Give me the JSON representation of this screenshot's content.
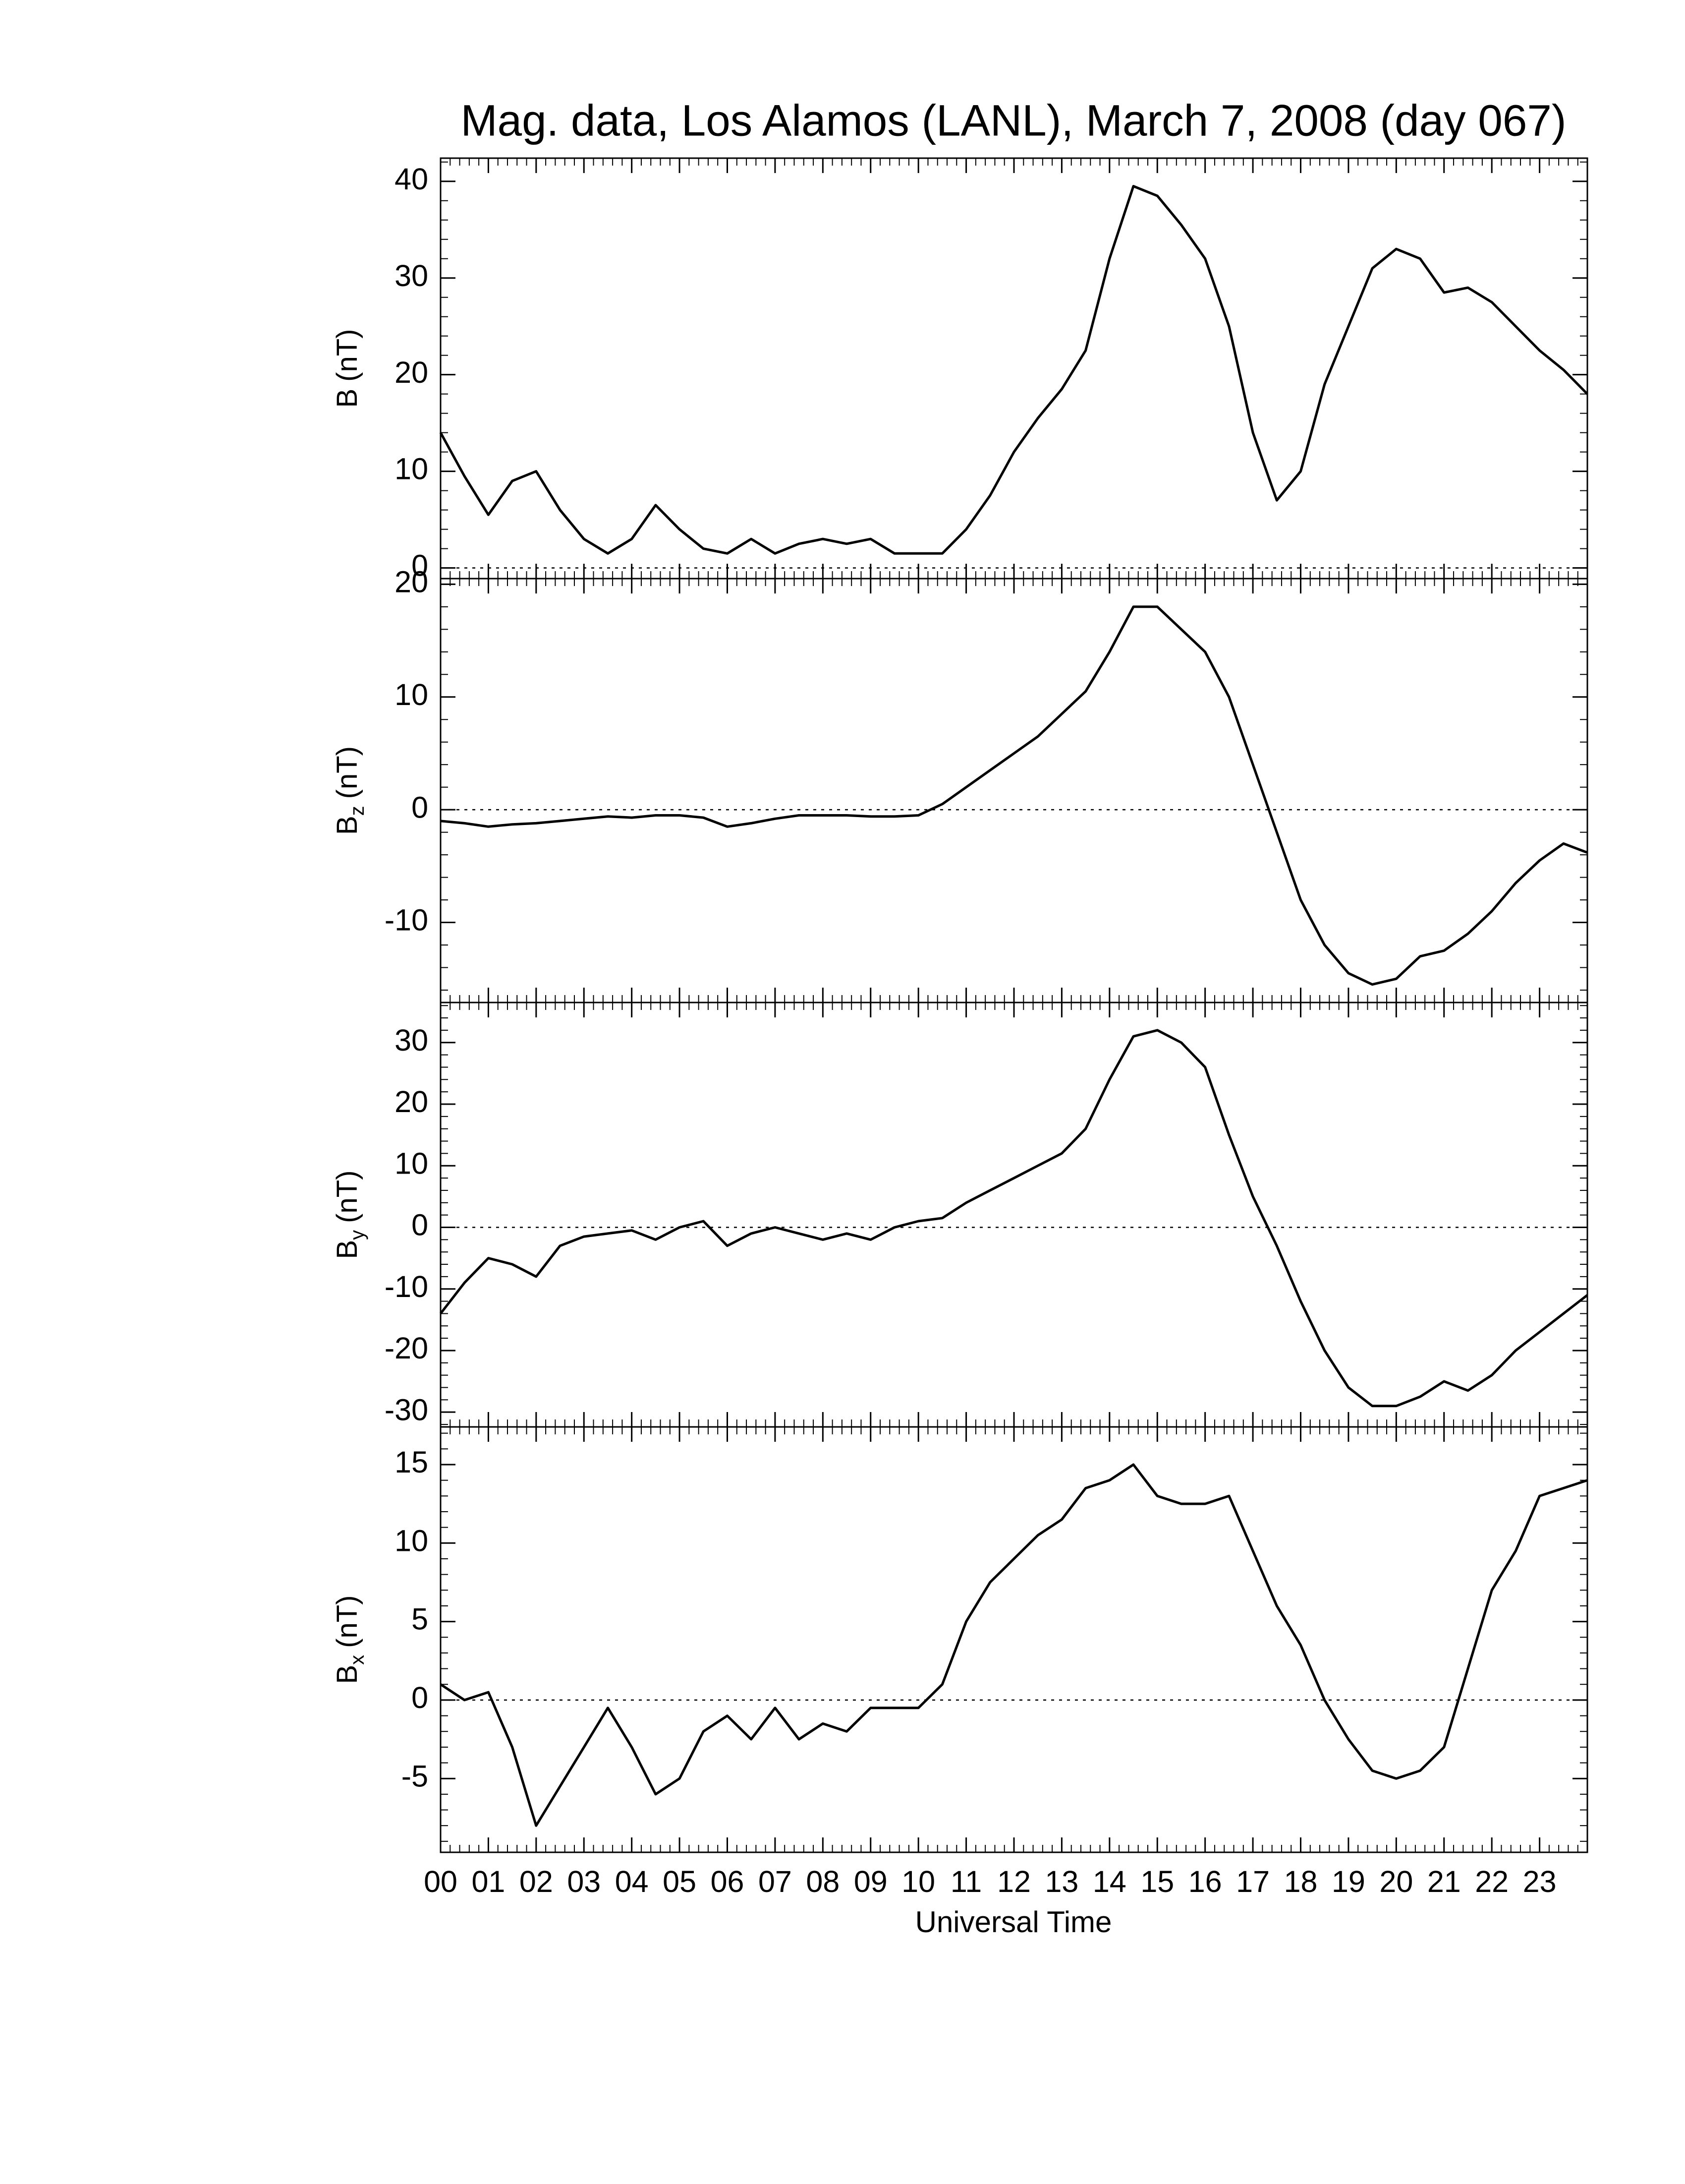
{
  "chart_data": [
    {
      "type": "line",
      "title": "Mag. data, Los Alamos (LANL), March 7, 2008 (day 067)",
      "ylabel_symbol": "B",
      "ylabel_unit": "(nT)",
      "color": "#000000",
      "hline": 0,
      "xlim": [
        0,
        24
      ],
      "ylim": [
        -1.1,
        42.4
      ],
      "yticks": [
        0,
        10,
        20,
        30,
        40
      ],
      "x": [
        0,
        0.5,
        1,
        1.5,
        2,
        2.5,
        3,
        3.5,
        4,
        4.5,
        5,
        5.5,
        6,
        6.5,
        7,
        7.5,
        8,
        8.5,
        9,
        9.5,
        10,
        10.5,
        11,
        11.5,
        12,
        12.5,
        13,
        13.5,
        14,
        14.5,
        15,
        15.5,
        16,
        16.5,
        17,
        17.5,
        18,
        18.5,
        19,
        19.5,
        20,
        20.5,
        21,
        21.5,
        22,
        22.5,
        23,
        23.5,
        24
      ],
      "values": [
        14,
        9.5,
        5.5,
        9,
        10,
        6,
        3,
        1.5,
        3,
        6.5,
        4,
        2,
        1.5,
        3,
        1.5,
        2.5,
        3,
        2.5,
        3,
        1.5,
        1.5,
        1.5,
        4,
        7.5,
        12,
        15.5,
        18.5,
        22.5,
        32,
        39.5,
        38.5,
        35.5,
        32,
        25,
        14,
        7,
        10,
        19,
        25,
        31,
        33,
        32,
        28.5,
        29,
        27.5,
        25,
        22.5,
        20.5,
        18
      ]
    },
    {
      "type": "line",
      "ylabel_symbol": "B",
      "ylabel_subscript": "z",
      "ylabel_unit": "(nT)",
      "color": "#000000",
      "hline": 0,
      "xlim": [
        0,
        24
      ],
      "ylim": [
        -17.1,
        20.5
      ],
      "yticks": [
        -10,
        0,
        10,
        20
      ],
      "x": [
        0,
        0.5,
        1,
        1.5,
        2,
        2.5,
        3,
        3.5,
        4,
        4.5,
        5,
        5.5,
        6,
        6.5,
        7,
        7.5,
        8,
        8.5,
        9,
        9.5,
        10,
        10.5,
        11,
        11.5,
        12,
        12.5,
        13,
        13.5,
        14,
        14.5,
        15,
        15.5,
        16,
        16.5,
        17,
        17.5,
        18,
        18.5,
        19,
        19.5,
        20,
        20.5,
        21,
        21.5,
        22,
        22.5,
        23,
        23.5,
        24
      ],
      "values": [
        -1,
        -1.2,
        -1.5,
        -1.3,
        -1.2,
        -1,
        -0.8,
        -0.6,
        -0.7,
        -0.5,
        -0.5,
        -0.7,
        -1.5,
        -1.2,
        -0.8,
        -0.5,
        -0.5,
        -0.5,
        -0.6,
        -0.6,
        -0.5,
        0.5,
        2,
        3.5,
        5,
        6.5,
        8.5,
        10.5,
        14,
        18,
        18,
        16,
        14,
        10,
        4,
        -2,
        -8,
        -12,
        -14.5,
        -15.5,
        -15,
        -13,
        -12.5,
        -11,
        -9,
        -6.5,
        -4.5,
        -3,
        -3.8
      ]
    },
    {
      "type": "line",
      "ylabel_symbol": "B",
      "ylabel_subscript": "y",
      "ylabel_unit": "(nT)",
      "color": "#000000",
      "hline": 0,
      "xlim": [
        0,
        24
      ],
      "ylim": [
        -32.4,
        36.5
      ],
      "yticks": [
        -30,
        -20,
        -10,
        0,
        10,
        20,
        30
      ],
      "x": [
        0,
        0.5,
        1,
        1.5,
        2,
        2.5,
        3,
        3.5,
        4,
        4.5,
        5,
        5.5,
        6,
        6.5,
        7,
        7.5,
        8,
        8.5,
        9,
        9.5,
        10,
        10.5,
        11,
        11.5,
        12,
        12.5,
        13,
        13.5,
        14,
        14.5,
        15,
        15.5,
        16,
        16.5,
        17,
        17.5,
        18,
        18.5,
        19,
        19.5,
        20,
        20.5,
        21,
        21.5,
        22,
        22.5,
        23,
        23.5,
        24
      ],
      "values": [
        -14,
        -9,
        -5,
        -6,
        -8,
        -3,
        -1.5,
        -1,
        -0.5,
        -2,
        0,
        1,
        -3,
        -1,
        0,
        -1,
        -2,
        -1,
        -2,
        0,
        1,
        1.5,
        4,
        6,
        8,
        10,
        12,
        16,
        24,
        31,
        32,
        30,
        26,
        15,
        5,
        -3,
        -12,
        -20,
        -26,
        -29,
        -29,
        -27.5,
        -25,
        -26.5,
        -24,
        -20,
        -17,
        -14,
        -11
      ]
    },
    {
      "type": "line",
      "ylabel_symbol": "B",
      "ylabel_subscript": "x",
      "ylabel_unit": "(nT)",
      "color": "#000000",
      "hline": 0,
      "xlabel": "Universal Time",
      "xlim": [
        0,
        24
      ],
      "ylim": [
        -9.7,
        17.4
      ],
      "yticks": [
        -5,
        0,
        5,
        10,
        15
      ],
      "xticks": [
        {
          "value": 0,
          "label": "00"
        },
        {
          "value": 1,
          "label": "01"
        },
        {
          "value": 2,
          "label": "02"
        },
        {
          "value": 3,
          "label": "03"
        },
        {
          "value": 4,
          "label": "04"
        },
        {
          "value": 5,
          "label": "05"
        },
        {
          "value": 6,
          "label": "06"
        },
        {
          "value": 7,
          "label": "07"
        },
        {
          "value": 8,
          "label": "08"
        },
        {
          "value": 9,
          "label": "09"
        },
        10,
        11,
        12,
        13,
        14,
        15,
        16,
        17,
        18,
        19,
        20,
        21,
        22,
        23
      ],
      "x": [
        0,
        0.5,
        1,
        1.5,
        2,
        2.5,
        3,
        3.5,
        4,
        4.5,
        5,
        5.5,
        6,
        6.5,
        7,
        7.5,
        8,
        8.5,
        9,
        9.5,
        10,
        10.5,
        11,
        11.5,
        12,
        12.5,
        13,
        13.5,
        14,
        14.5,
        15,
        15.5,
        16,
        16.5,
        17,
        17.5,
        18,
        18.5,
        19,
        19.5,
        20,
        20.5,
        21,
        21.5,
        22,
        22.5,
        23,
        23.5,
        24
      ],
      "values": [
        1,
        0,
        0.5,
        -3,
        -8,
        -5.5,
        -3,
        -0.5,
        -3,
        -6,
        -5,
        -2,
        -1,
        -2.5,
        -0.5,
        -2.5,
        -1.5,
        -2,
        -0.5,
        -0.5,
        -0.5,
        1,
        5,
        7.5,
        9,
        10.5,
        11.5,
        13.5,
        14,
        15,
        13,
        12.5,
        12.5,
        13,
        9.5,
        6,
        3.5,
        0,
        -2.5,
        -4.5,
        -5,
        -4.5,
        -3,
        2,
        7,
        9.5,
        13,
        13.5,
        14
      ]
    }
  ]
}
